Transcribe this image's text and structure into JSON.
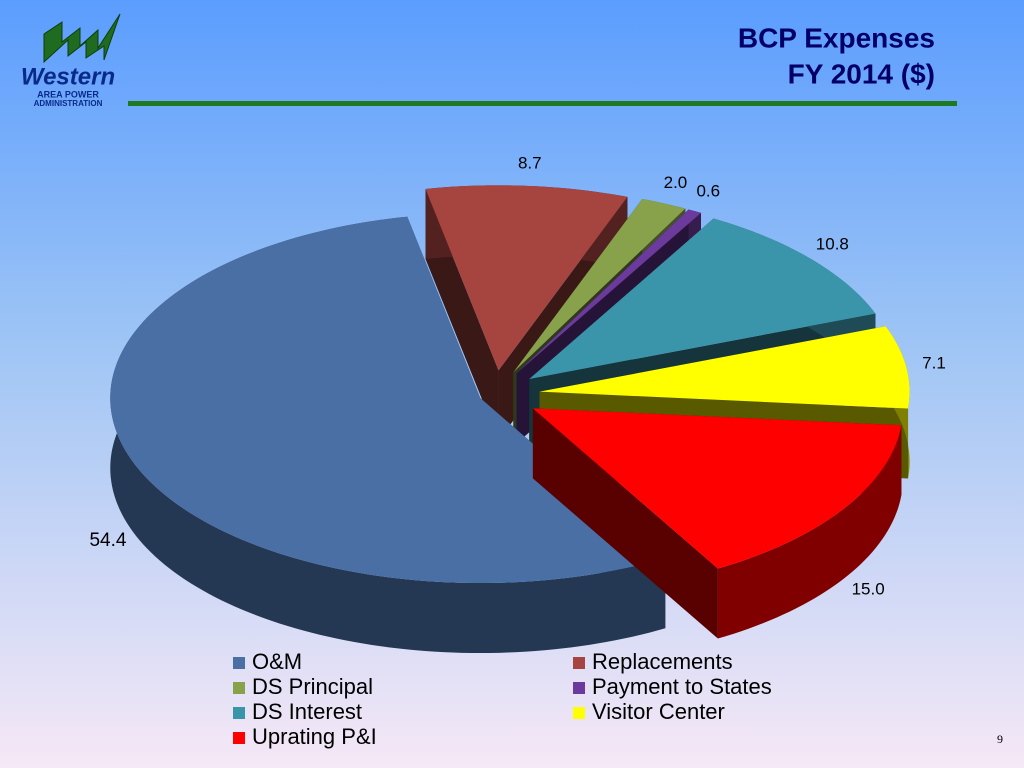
{
  "logo": {
    "name": "Western",
    "line1": "AREA POWER",
    "line2": "ADMINISTRATION"
  },
  "slide_number": "9",
  "chart_data": {
    "type": "pie",
    "title": "BCP Expenses",
    "subtitle": "FY 2014 ($)",
    "categories": [
      "O&M",
      "Replacements",
      "DS Principal",
      "Payment to States",
      "DS Interest",
      "Visitor Center",
      "Uprating P&I"
    ],
    "values": [
      54.4,
      8.7,
      2.0,
      0.6,
      10.8,
      7.1,
      15.0
    ],
    "value_labels": [
      "54.4",
      "8.7",
      "2.0",
      "0.6",
      "10.8",
      "7.1",
      "15.0"
    ],
    "colors": [
      "#4a6fa5",
      "#a64440",
      "#88a24c",
      "#6b3a9c",
      "#3b95aa",
      "#ffff00",
      "#ff0000"
    ]
  }
}
